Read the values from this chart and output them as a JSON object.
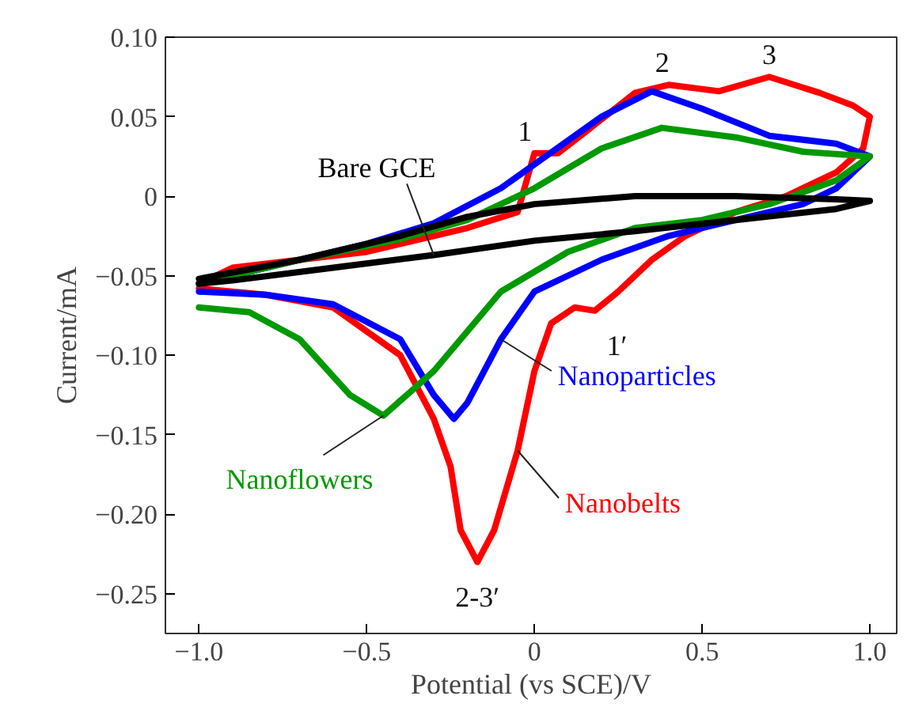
{
  "chart_data": {
    "type": "line",
    "xlabel": "Potential (vs SCE)/V",
    "ylabel": "Current/mA",
    "xlim": [
      -1.1,
      1.08
    ],
    "ylim": [
      -0.275,
      0.1
    ],
    "xticks": [
      {
        "value": -1.0,
        "label": "−1.0"
      },
      {
        "value": -0.5,
        "label": "−0.5"
      },
      0,
      0.5,
      {
        "value": 1.0,
        "label": "1.0"
      }
    ],
    "yticks": [
      {
        "value": 0.1,
        "label": "0.10"
      },
      0.05,
      0,
      {
        "value": -0.05,
        "label": "−0.05"
      },
      {
        "value": -0.1,
        "label": "−0.10"
      },
      {
        "value": -0.15,
        "label": "−0.15"
      },
      {
        "value": -0.2,
        "label": "−0.20"
      },
      {
        "value": -0.25,
        "label": "−0.25"
      }
    ],
    "grid": false,
    "marker": "none",
    "line_style": "solid",
    "series": [
      {
        "name": "Nanobelts",
        "color": "#ff0000",
        "x": [
          -1.0,
          -0.9,
          -0.5,
          -0.2,
          -0.05,
          0.0,
          0.07,
          0.15,
          0.3,
          0.4,
          0.55,
          0.7,
          0.85,
          0.95,
          1.0,
          0.98,
          0.9,
          0.75,
          0.6,
          0.45,
          0.35,
          0.25,
          0.18,
          0.12,
          0.05,
          0.0,
          -0.05,
          -0.12,
          -0.17,
          -0.22,
          -0.25,
          -0.3,
          -0.4,
          -0.6,
          -0.8,
          -1.0
        ],
        "values": [
          -0.055,
          -0.045,
          -0.035,
          -0.02,
          -0.01,
          0.027,
          0.027,
          0.04,
          0.065,
          0.07,
          0.066,
          0.075,
          0.065,
          0.057,
          0.05,
          0.03,
          0.015,
          0.0,
          -0.01,
          -0.025,
          -0.04,
          -0.06,
          -0.072,
          -0.07,
          -0.08,
          -0.11,
          -0.16,
          -0.21,
          -0.23,
          -0.21,
          -0.17,
          -0.14,
          -0.1,
          -0.07,
          -0.062,
          -0.058
        ]
      },
      {
        "name": "Nanoparticles",
        "color": "#0000ff",
        "x": [
          -1.0,
          -0.8,
          -0.5,
          -0.3,
          -0.1,
          0.1,
          0.2,
          0.35,
          0.5,
          0.7,
          0.9,
          1.0,
          0.9,
          0.8,
          0.6,
          0.4,
          0.2,
          0.0,
          -0.1,
          -0.2,
          -0.24,
          -0.3,
          -0.4,
          -0.6,
          -0.8,
          -1.0
        ],
        "values": [
          -0.055,
          -0.045,
          -0.03,
          -0.017,
          0.005,
          0.035,
          0.05,
          0.066,
          0.055,
          0.038,
          0.033,
          0.025,
          0.005,
          -0.005,
          -0.015,
          -0.025,
          -0.04,
          -0.06,
          -0.09,
          -0.13,
          -0.14,
          -0.125,
          -0.09,
          -0.068,
          -0.062,
          -0.06
        ]
      },
      {
        "name": "Nanoflowers",
        "color": "#009900",
        "x": [
          -1.0,
          -0.7,
          -0.4,
          -0.2,
          0.0,
          0.2,
          0.38,
          0.6,
          0.8,
          1.0,
          0.9,
          0.7,
          0.5,
          0.3,
          0.1,
          -0.1,
          -0.3,
          -0.45,
          -0.55,
          -0.7,
          -0.85,
          -1.0
        ],
        "values": [
          -0.055,
          -0.04,
          -0.027,
          -0.015,
          0.005,
          0.03,
          0.043,
          0.037,
          0.028,
          0.025,
          0.01,
          -0.005,
          -0.015,
          -0.02,
          -0.035,
          -0.06,
          -0.11,
          -0.138,
          -0.125,
          -0.09,
          -0.073,
          -0.07
        ]
      },
      {
        "name": "Bare GCE",
        "color": "#000000",
        "x": [
          -1.0,
          -0.7,
          -0.4,
          -0.2,
          0.0,
          0.3,
          0.6,
          0.9,
          1.0,
          0.9,
          0.6,
          0.3,
          0.0,
          -0.3,
          -0.6,
          -0.9,
          -1.0
        ],
        "values": [
          -0.052,
          -0.04,
          -0.025,
          -0.013,
          -0.005,
          0.0,
          0.0,
          -0.002,
          -0.003,
          -0.008,
          -0.015,
          -0.022,
          -0.028,
          -0.037,
          -0.045,
          -0.053,
          -0.055
        ]
      }
    ],
    "annotations": [
      {
        "text": "1",
        "x": 0.0,
        "y": 0.027
      },
      {
        "text": "2",
        "x": 0.4,
        "y": 0.07
      },
      {
        "text": "3",
        "x": 0.7,
        "y": 0.075
      },
      {
        "text": "1′",
        "x": 0.18,
        "y": -0.072
      },
      {
        "text": "2-3′",
        "x": -0.17,
        "y": -0.23
      }
    ]
  }
}
